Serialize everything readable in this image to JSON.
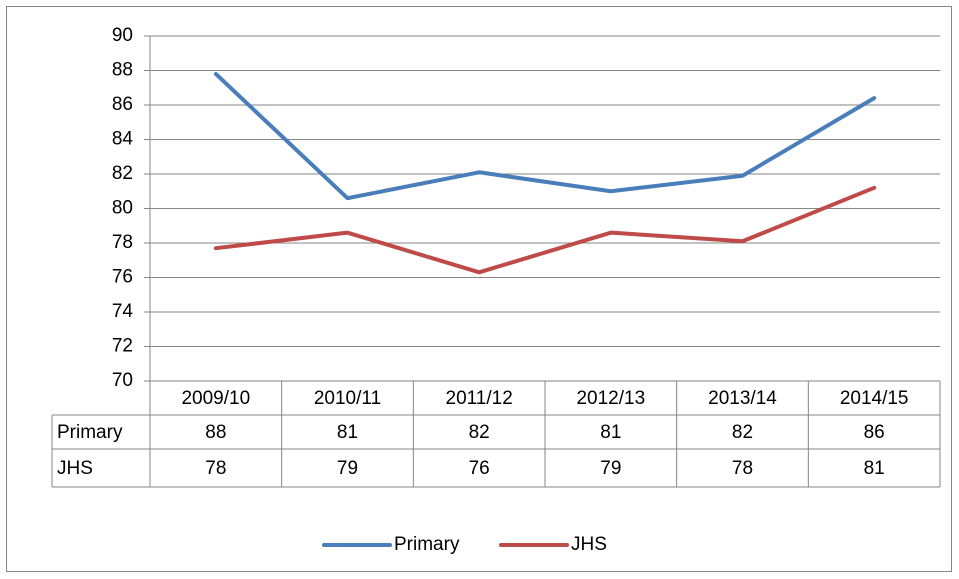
{
  "chart_data": {
    "type": "line",
    "categories": [
      "2009/10",
      "2010/11",
      "2011/12",
      "2012/13",
      "2013/14",
      "2014/15"
    ],
    "series": [
      {
        "name": "Primary",
        "color": "#4a7ebb",
        "values": [
          87.8,
          80.6,
          82.1,
          81.0,
          81.9,
          86.4
        ],
        "value_labels": [
          "88",
          "81",
          "82",
          "81",
          "82",
          "86"
        ]
      },
      {
        "name": "JHS",
        "color": "#be4b48",
        "values": [
          77.7,
          78.6,
          76.3,
          78.6,
          78.1,
          81.2
        ],
        "value_labels": [
          "78",
          "79",
          "76",
          "79",
          "78",
          "81"
        ]
      }
    ],
    "ylim": [
      70,
      90
    ],
    "yticks": [
      70,
      72,
      74,
      76,
      78,
      80,
      82,
      84,
      86,
      88,
      90
    ],
    "grid": true,
    "legend": "bottom",
    "data_table": true
  }
}
